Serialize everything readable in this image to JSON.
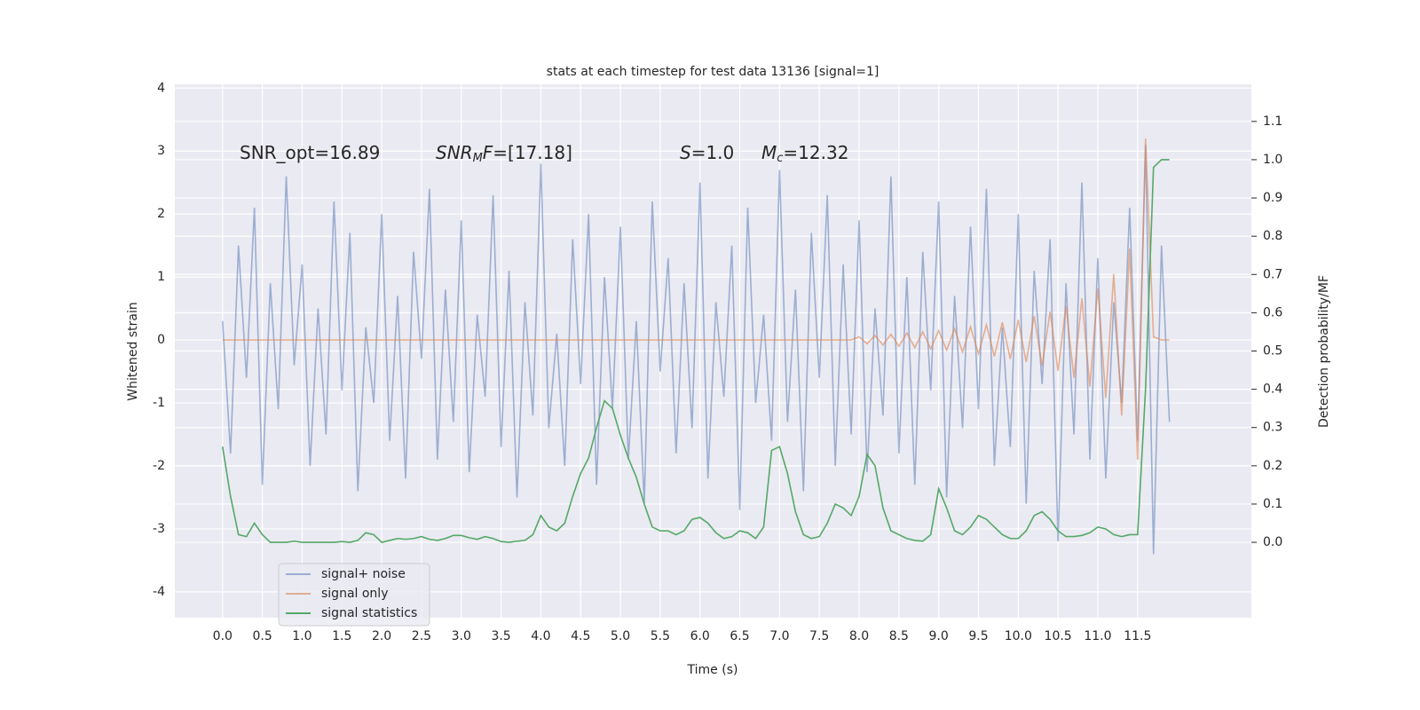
{
  "chart_data": {
    "type": "line",
    "title": "stats at each timestep for test data 13136 [signal=1]",
    "x_label": "Time (s)",
    "y_label": "Whitened strain",
    "y2_label": "Detection probability/MF",
    "grid": true,
    "legend": "lower left",
    "xlim": [
      -0.6,
      12.93
    ],
    "ylim": [
      -4.41,
      4.06
    ],
    "y2lim": [
      -0.197,
      1.197
    ],
    "xticks": [
      {
        "value": 0,
        "label": "0.0"
      },
      0.5,
      {
        "value": 1,
        "label": "1.0"
      },
      1.5,
      {
        "value": 2,
        "label": "2.0"
      },
      2.5,
      {
        "value": 3,
        "label": "3.0"
      },
      3.5,
      {
        "value": 4,
        "label": "4.0"
      },
      4.5,
      {
        "value": 5,
        "label": "5.0"
      },
      5.5,
      {
        "value": 6,
        "label": "6.0"
      },
      6.5,
      {
        "value": 7,
        "label": "7.0"
      },
      7.5,
      {
        "value": 8,
        "label": "8.0"
      },
      8.5,
      {
        "value": 9,
        "label": "9.0"
      },
      9.5,
      {
        "value": 10,
        "label": "10.0"
      },
      10.5,
      {
        "value": 11,
        "label": "11.0"
      },
      11.5
    ],
    "yticks": [
      -4,
      -3,
      -2,
      -1,
      0,
      1,
      2,
      3,
      4
    ],
    "y2ticks": [
      {
        "value": 0,
        "label": "0.0"
      },
      0.1,
      0.2,
      0.3,
      0.4,
      0.5,
      0.6,
      0.7,
      0.8,
      0.9,
      {
        "value": 1,
        "label": "1.0"
      },
      1.1
    ],
    "annotations": [
      [
        {
          "text": "SNR_opt=16.89"
        }
      ],
      [
        {
          "text": "SNR",
          "italic": true
        },
        {
          "text": "M",
          "italic": true,
          "sub": true
        },
        {
          "text": "F",
          "italic": true
        },
        {
          "text": "=[17.18]"
        }
      ],
      [
        {
          "text": "S",
          "italic": true
        },
        {
          "text": "=1.0"
        }
      ],
      [
        {
          "text": "M",
          "italic": true
        },
        {
          "text": "c",
          "italic": true,
          "sub": true
        },
        {
          "text": "=12.32"
        }
      ]
    ],
    "x": [
      0,
      0.1,
      0.2,
      0.3,
      0.4,
      0.5,
      0.6,
      0.7,
      0.8,
      0.9,
      1,
      1.1,
      1.2,
      1.3,
      1.4,
      1.5,
      1.6,
      1.7,
      1.8,
      1.9,
      2,
      2.1,
      2.2,
      2.3,
      2.4,
      2.5,
      2.6,
      2.7,
      2.8,
      2.9,
      3,
      3.1,
      3.2,
      3.3,
      3.4,
      3.5,
      3.6,
      3.7,
      3.8,
      3.9,
      4,
      4.1,
      4.2,
      4.3,
      4.4,
      4.5,
      4.6,
      4.7,
      4.8,
      4.9,
      5,
      5.1,
      5.2,
      5.3,
      5.4,
      5.5,
      5.6,
      5.7,
      5.8,
      5.9,
      6,
      6.1,
      6.2,
      6.3,
      6.4,
      6.5,
      6.6,
      6.7,
      6.8,
      6.9,
      7,
      7.1,
      7.2,
      7.3,
      7.4,
      7.5,
      7.6,
      7.7,
      7.8,
      7.9,
      8,
      8.1,
      8.2,
      8.3,
      8.4,
      8.5,
      8.6,
      8.7,
      8.8,
      8.9,
      9,
      9.1,
      9.2,
      9.3,
      9.4,
      9.5,
      9.6,
      9.7,
      9.8,
      9.9,
      10,
      10.1,
      10.2,
      10.3,
      10.4,
      10.5,
      10.6,
      10.7,
      10.8,
      10.9,
      11,
      11.1,
      11.2,
      11.3,
      11.4,
      11.5,
      11.6,
      11.7,
      11.8,
      11.9
    ],
    "series": [
      {
        "name": "signal+ noise",
        "color": "#4c72b0",
        "opacity": 0.5,
        "axis": "y",
        "values": [
          0.3,
          -1.8,
          1.5,
          -0.6,
          2.1,
          -2.3,
          0.9,
          -1.1,
          2.6,
          -0.4,
          1.2,
          -2.0,
          0.5,
          -1.5,
          2.2,
          -0.8,
          1.7,
          -2.4,
          0.2,
          -1.0,
          2.0,
          -1.6,
          0.7,
          -2.2,
          1.4,
          -0.3,
          2.4,
          -1.9,
          0.8,
          -1.3,
          1.9,
          -2.1,
          0.4,
          -0.9,
          2.3,
          -1.7,
          1.1,
          -2.5,
          0.6,
          -1.2,
          2.8,
          -1.4,
          0.1,
          -2.0,
          1.6,
          -0.7,
          2.0,
          -2.3,
          1.0,
          -1.1,
          1.8,
          -1.9,
          0.3,
          -2.6,
          2.2,
          -0.5,
          1.3,
          -1.8,
          0.9,
          -1.4,
          2.5,
          -2.2,
          0.6,
          -0.9,
          1.5,
          -2.7,
          2.1,
          -1.0,
          0.4,
          -1.6,
          2.7,
          -1.3,
          0.8,
          -2.4,
          1.7,
          -0.6,
          2.3,
          -2.0,
          1.2,
          -1.5,
          1.9,
          -2.1,
          0.5,
          -1.2,
          2.6,
          -1.8,
          1.0,
          -2.3,
          1.4,
          -0.8,
          2.2,
          -2.5,
          0.7,
          -1.4,
          1.8,
          -1.1,
          2.4,
          -2.0,
          0.2,
          -1.7,
          2.0,
          -2.6,
          1.1,
          -0.7,
          1.6,
          -3.2,
          0.9,
          -1.5,
          2.5,
          -1.9,
          1.3,
          -2.2,
          0.6,
          -1.0,
          2.1,
          -1.6,
          3.1,
          -3.4,
          1.5,
          -1.3
        ]
      },
      {
        "name": "signal only",
        "color": "#dd8452",
        "opacity": 0.6,
        "axis": "y",
        "values": [
          0,
          0,
          0,
          0,
          0,
          0,
          0,
          0,
          0,
          0,
          0,
          0,
          0,
          0,
          0,
          0,
          0,
          0,
          0,
          0,
          0,
          0,
          0,
          0,
          0,
          0,
          0,
          0,
          0,
          0,
          0,
          0,
          0,
          0,
          0,
          0,
          0,
          0,
          0,
          0,
          0,
          0,
          0,
          0,
          0,
          0,
          0,
          0,
          0,
          0,
          0,
          0,
          0,
          0,
          0,
          0,
          0,
          0,
          0,
          0,
          0,
          0,
          0,
          0,
          0,
          0,
          0,
          0,
          0,
          0,
          0,
          0,
          0,
          0,
          0,
          0,
          0,
          0,
          0,
          0,
          0.05,
          -0.06,
          0.07,
          -0.08,
          0.09,
          -0.1,
          0.11,
          -0.12,
          0.13,
          -0.14,
          0.15,
          -0.16,
          0.18,
          -0.19,
          0.21,
          -0.22,
          0.24,
          -0.26,
          0.28,
          -0.3,
          0.32,
          -0.35,
          0.38,
          -0.41,
          0.45,
          -0.49,
          0.54,
          -0.6,
          0.66,
          -0.74,
          0.82,
          -0.92,
          1.05,
          -1.2,
          1.45,
          -1.9,
          3.2,
          0.05,
          0,
          0
        ]
      },
      {
        "name": "signal statistics",
        "color": "#55a868",
        "opacity": 1,
        "axis": "y2",
        "values": [
          0.25,
          0.12,
          0.02,
          0.015,
          0.05,
          0.02,
          0,
          0,
          0,
          0.003,
          0,
          0,
          0,
          0,
          0,
          0.002,
          0,
          0.005,
          0.025,
          0.02,
          0,
          0.005,
          0.01,
          0.008,
          0.01,
          0.015,
          0.008,
          0.005,
          0.01,
          0.018,
          0.018,
          0.012,
          0.008,
          0.015,
          0.01,
          0.002,
          0,
          0.003,
          0.005,
          0.02,
          0.07,
          0.04,
          0.03,
          0.05,
          0.12,
          0.18,
          0.22,
          0.3,
          0.37,
          0.35,
          0.28,
          0.22,
          0.17,
          0.1,
          0.04,
          0.03,
          0.03,
          0.02,
          0.03,
          0.06,
          0.065,
          0.05,
          0.025,
          0.01,
          0.015,
          0.03,
          0.025,
          0.01,
          0.04,
          0.24,
          0.25,
          0.18,
          0.08,
          0.02,
          0.01,
          0.015,
          0.05,
          0.1,
          0.09,
          0.07,
          0.12,
          0.23,
          0.2,
          0.09,
          0.03,
          0.02,
          0.01,
          0.005,
          0.003,
          0.02,
          0.14,
          0.09,
          0.03,
          0.02,
          0.04,
          0.07,
          0.06,
          0.04,
          0.02,
          0.01,
          0.01,
          0.03,
          0.07,
          0.08,
          0.06,
          0.03,
          0.015,
          0.015,
          0.018,
          0.025,
          0.04,
          0.035,
          0.02,
          0.015,
          0.02,
          0.02,
          0.4,
          0.98,
          1.0,
          1.0
        ]
      }
    ]
  }
}
